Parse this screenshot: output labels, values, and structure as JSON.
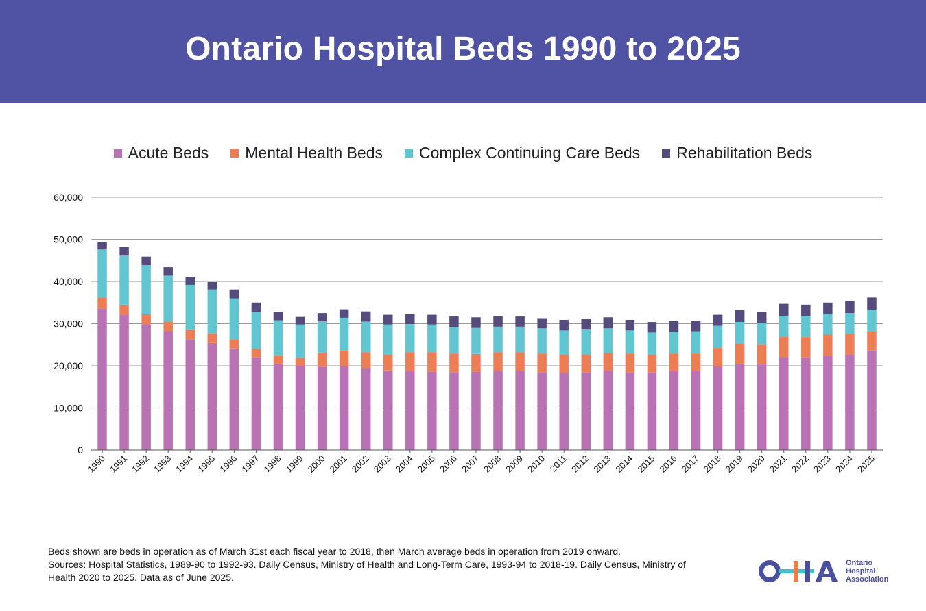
{
  "title": "Ontario Hospital Beds 1990 to 2025",
  "legend": [
    {
      "label": "Acute Beds",
      "color": "#b972b4"
    },
    {
      "label": "Mental Health Beds",
      "color": "#ec7d55"
    },
    {
      "label": "Complex Continuing Care Beds",
      "color": "#62c6d2"
    },
    {
      "label": "Rehabilitation Beds",
      "color": "#564b7d"
    }
  ],
  "chart_data": {
    "type": "bar",
    "stacked": true,
    "categories": [
      "1990",
      "1991",
      "1992",
      "1993",
      "1994",
      "1995",
      "1996",
      "1997",
      "1998",
      "1999",
      "2000",
      "2001",
      "2002",
      "2003",
      "2004",
      "2005",
      "2006",
      "2007",
      "2008",
      "2009",
      "2010",
      "2011",
      "2012",
      "2013",
      "2014",
      "2015",
      "2016",
      "2017",
      "2018",
      "2019",
      "2020",
      "2021",
      "2022",
      "2023",
      "2024",
      "2025"
    ],
    "series": [
      {
        "name": "Acute Beds",
        "color": "#b972b4",
        "values": [
          33600,
          32100,
          29900,
          28300,
          26300,
          25400,
          24100,
          22000,
          20500,
          20000,
          19800,
          19900,
          19500,
          18900,
          18700,
          18600,
          18500,
          18600,
          18800,
          18800,
          18500,
          18300,
          18400,
          18800,
          18500,
          18400,
          18700,
          18800,
          19900,
          20500,
          20300,
          22100,
          22000,
          22400,
          22600,
          23600
        ]
      },
      {
        "name": "Mental Health Beds",
        "color": "#ec7d55",
        "values": [
          2600,
          2400,
          2300,
          2200,
          2200,
          2300,
          2200,
          2000,
          2000,
          1900,
          3300,
          3700,
          3700,
          3700,
          4500,
          4600,
          4400,
          4200,
          4400,
          4400,
          4400,
          4300,
          4300,
          4200,
          4400,
          4200,
          4200,
          4100,
          4300,
          4800,
          4800,
          4800,
          4800,
          5000,
          4900,
          4600
        ]
      },
      {
        "name": "Complex Continuing Care Beds",
        "color": "#62c6d2",
        "values": [
          11400,
          11700,
          11700,
          10900,
          10700,
          10400,
          9700,
          8800,
          8300,
          7900,
          7500,
          7800,
          7300,
          7200,
          6700,
          6600,
          6300,
          6200,
          6100,
          6100,
          6000,
          5800,
          5900,
          5900,
          5500,
          5300,
          5200,
          5300,
          5300,
          5100,
          5100,
          4900,
          5000,
          4900,
          5000,
          5100
        ]
      },
      {
        "name": "Rehabilitation Beds",
        "color": "#564b7d",
        "values": [
          1800,
          2000,
          2000,
          2000,
          1900,
          1900,
          2100,
          2200,
          2000,
          1800,
          1900,
          2000,
          2400,
          2300,
          2300,
          2300,
          2500,
          2500,
          2500,
          2400,
          2400,
          2500,
          2600,
          2600,
          2500,
          2500,
          2500,
          2500,
          2600,
          2800,
          2600,
          2900,
          2700,
          2700,
          2800,
          2900
        ]
      }
    ],
    "y_ticks": [
      "0",
      "10,000",
      "20,000",
      "30,000",
      "40,000",
      "50,000",
      "60,000"
    ],
    "ylim": [
      0,
      60000
    ],
    "grid": true,
    "legend_position": "top-center"
  },
  "footnote": {
    "line1": "Beds shown are beds in operation as of March 31st each fiscal year to 2018, then March average beds in operation from 2019 onward.",
    "line2": "Sources: Hospital Statistics, 1989-90 to 1992-93. Daily Census, Ministry of Health and Long-Term Care, 1993-94 to 2018-19. Daily Census, Ministry of Health 2020 to 2025. Data as of June 2025."
  },
  "logo": {
    "letters": "OHA",
    "text": [
      "Ontario",
      "Hospital",
      "Association"
    ],
    "colors": {
      "primary": "#4b4fa0",
      "teal": "#3fc3cf",
      "orange": "#ef7d45"
    }
  },
  "colors": {
    "banner": "#5053a4",
    "grid": "#9a9a9a",
    "axis": "#555555"
  }
}
